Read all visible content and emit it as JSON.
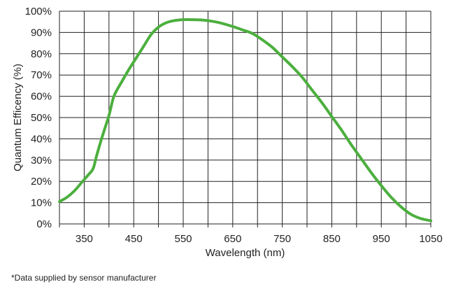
{
  "chart_data": {
    "type": "line",
    "title": "",
    "xlabel": "Wavelength (nm)",
    "ylabel": "Quantum Efficency (%)",
    "xlim": [
      300,
      1050
    ],
    "ylim": [
      0,
      100
    ],
    "x_ticks": [
      350,
      450,
      550,
      650,
      750,
      850,
      950,
      1050
    ],
    "x_tick_labels": [
      "350",
      "450",
      "550",
      "650",
      "750",
      "850",
      "950",
      "1050"
    ],
    "x_grid_step": 50,
    "y_ticks": [
      0,
      10,
      20,
      30,
      40,
      50,
      60,
      70,
      80,
      90,
      100
    ],
    "y_tick_labels": [
      "0%",
      "10%",
      "20%",
      "30%",
      "40%",
      "50%",
      "60%",
      "70%",
      "80%",
      "90%",
      "100%"
    ],
    "grid": true,
    "legend": "none",
    "colors": {
      "line": "#4caf3e",
      "grid": "#222222",
      "axis": "#222222"
    },
    "series": [
      {
        "name": "Quantum Efficiency",
        "x": [
          300,
          315,
          330,
          345,
          358,
          368,
          375,
          385,
          400,
          410,
          425,
          440,
          455,
          470,
          485,
          500,
          515,
          530,
          550,
          570,
          590,
          610,
          630,
          650,
          670,
          690,
          710,
          730,
          750,
          770,
          790,
          810,
          830,
          850,
          870,
          890,
          910,
          930,
          950,
          970,
          990,
          1010,
          1030,
          1050
        ],
        "y": [
          10.5,
          12.5,
          15.5,
          19.5,
          23,
          26,
          32,
          40,
          51,
          60,
          66.5,
          72.5,
          78,
          83.5,
          89,
          92.5,
          94.5,
          95.5,
          96,
          96,
          95.8,
          95.2,
          94.2,
          92.8,
          91.2,
          89.5,
          86.5,
          83,
          78.5,
          74,
          69,
          63,
          57,
          50.5,
          44,
          37,
          30.5,
          24,
          18,
          12.5,
          8,
          4.5,
          2.5,
          1.5
        ]
      }
    ]
  },
  "footnote": "*Data supplied by sensor manufacturer"
}
